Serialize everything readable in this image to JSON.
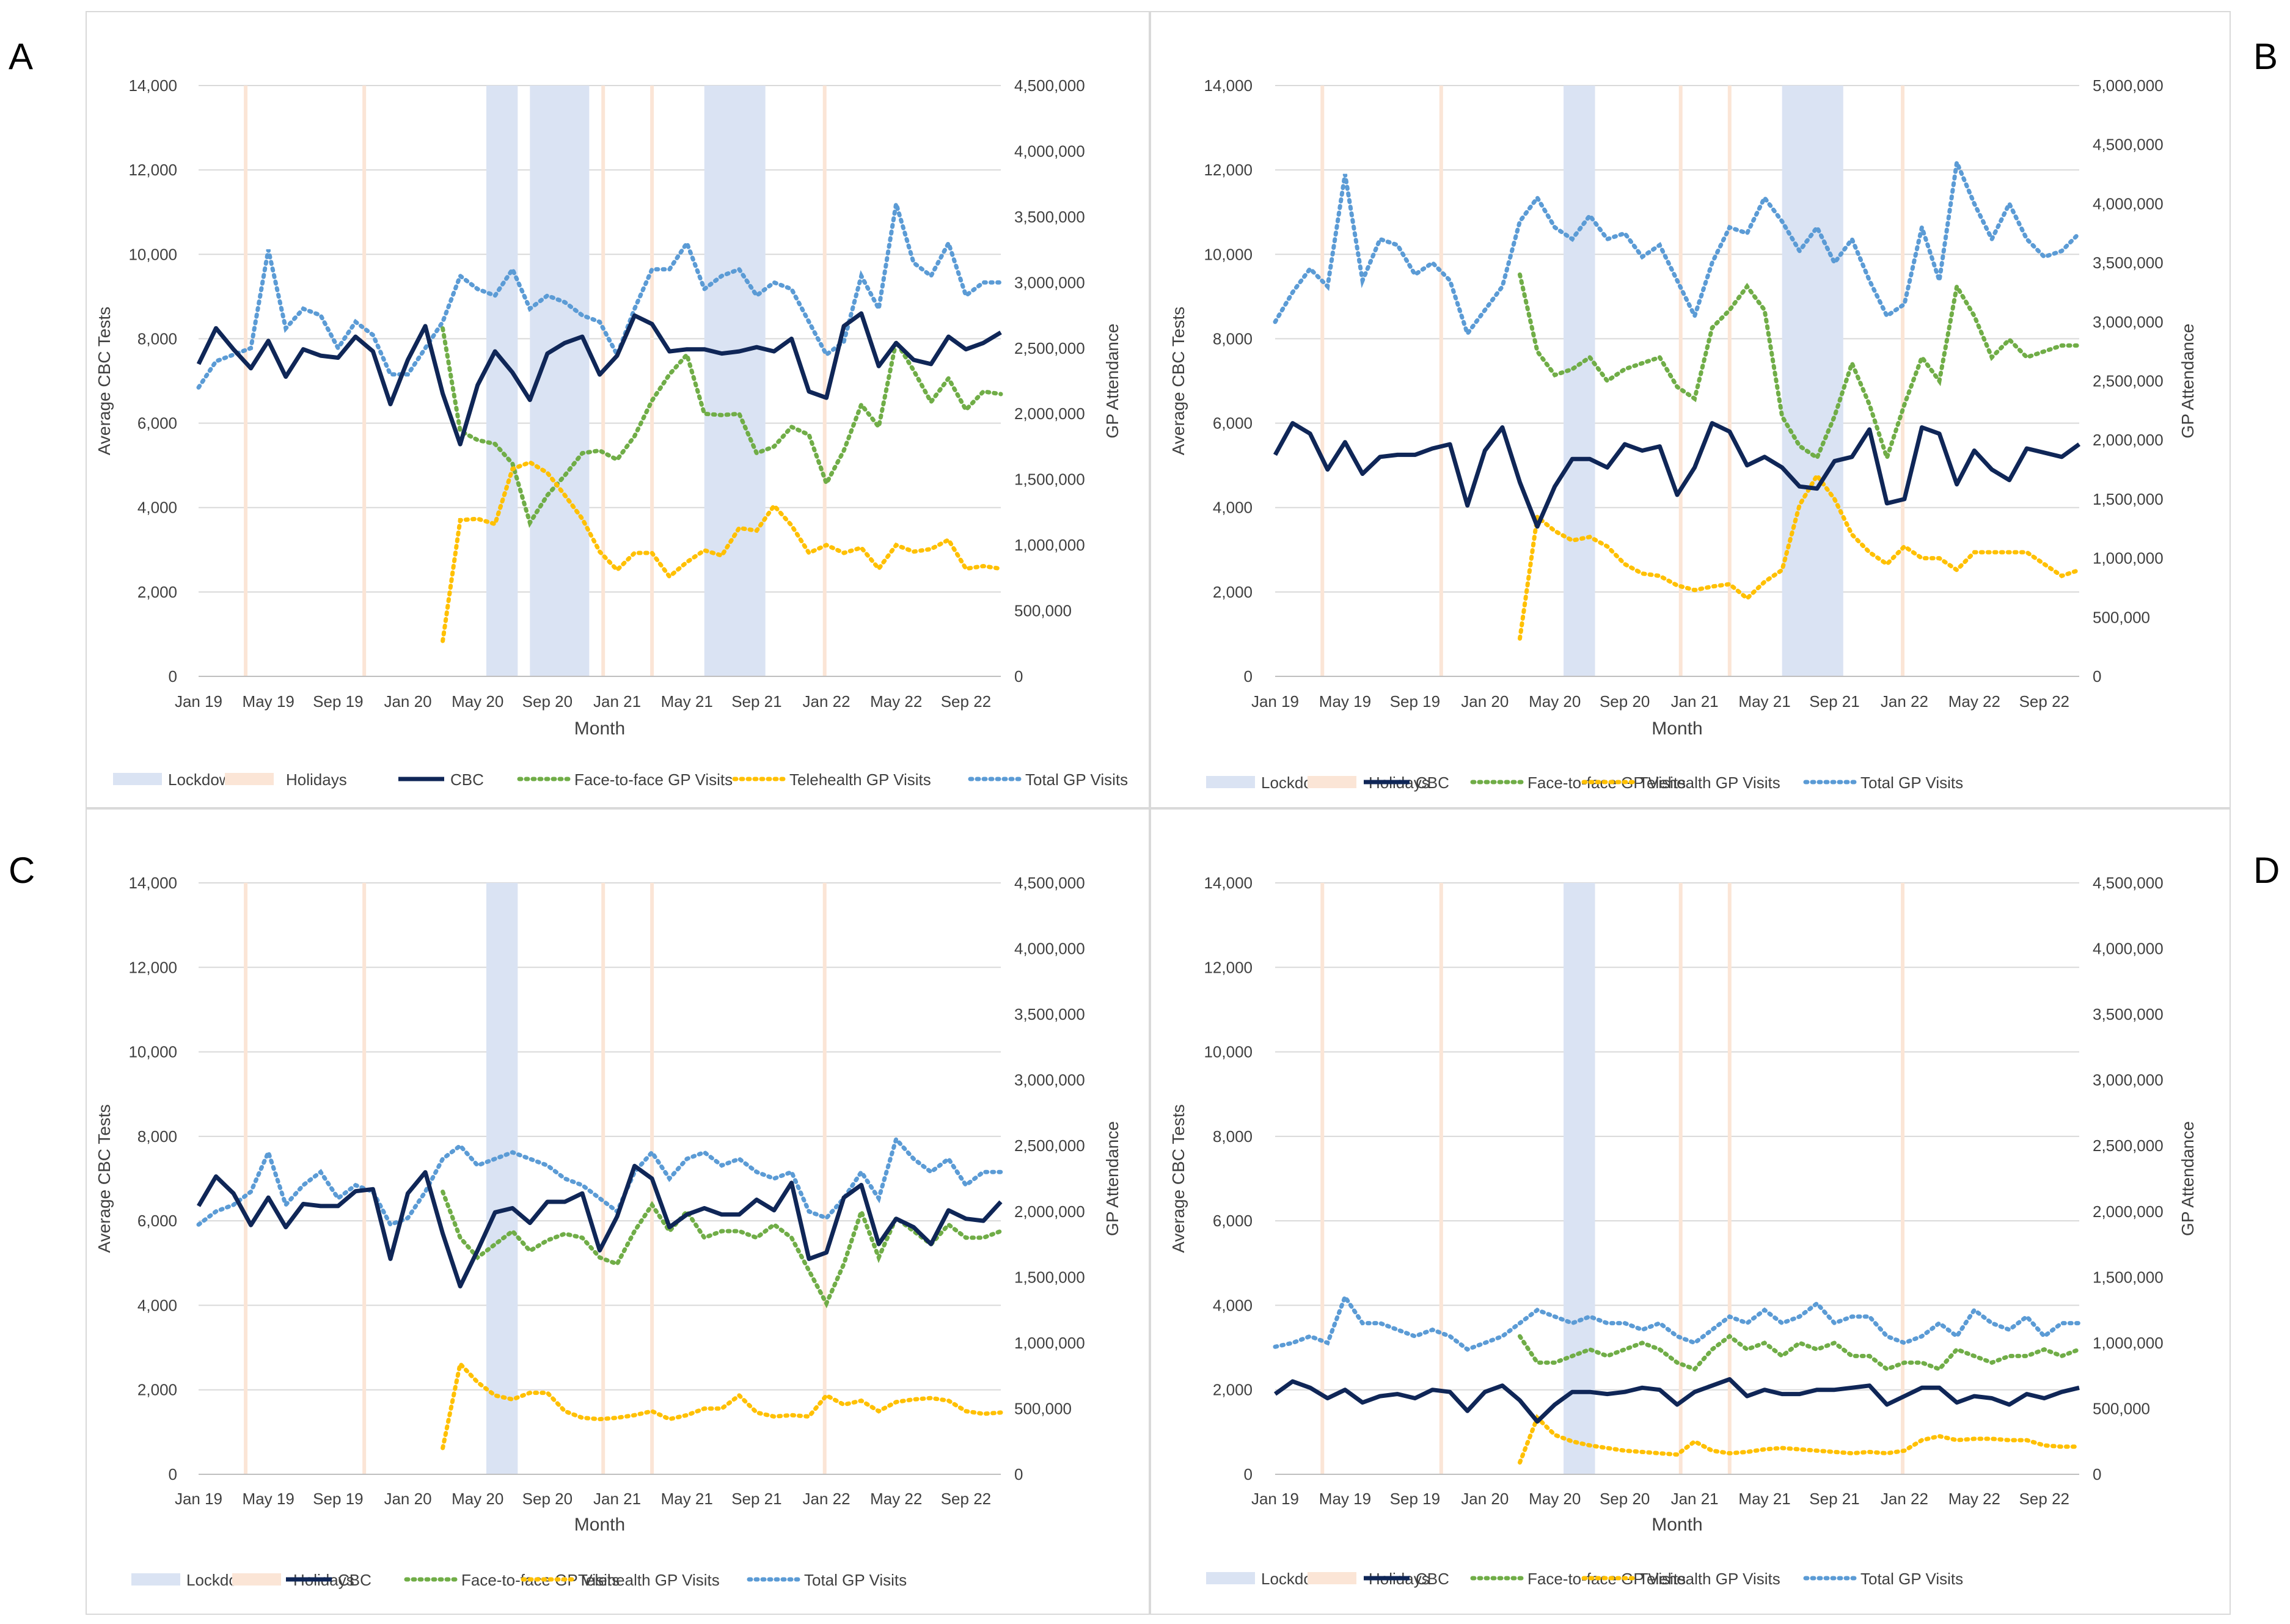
{
  "chart_data": [
    {
      "panel_letter": "A",
      "type": "line",
      "xlabel": "Month",
      "ylabel": "Average CBC Tests",
      "y2label": "GP Attendance",
      "ylim": [
        0,
        14000
      ],
      "y2lim": [
        0,
        4500000
      ],
      "yticks": [
        0,
        2000,
        4000,
        6000,
        8000,
        10000,
        12000,
        14000
      ],
      "y2ticks": [
        0,
        500000,
        1000000,
        1500000,
        2000000,
        2500000,
        3000000,
        3500000,
        4000000,
        4500000
      ],
      "lockdown_months": [
        [
          16.5,
          18.3
        ],
        [
          19.0,
          22.4
        ],
        [
          29.0,
          32.5
        ]
      ],
      "holiday_months": [
        2.7,
        9.5,
        23.2,
        26.0,
        35.9
      ],
      "cbc": [
        7400,
        8250,
        7750,
        7300,
        7950,
        7100,
        7750,
        7600,
        7550,
        8050,
        7700,
        6450,
        7500,
        8300,
        6700,
        5500,
        6900,
        7700,
        7200,
        6550,
        7650,
        7900,
        8050,
        7150,
        7600,
        8550,
        8350,
        7700,
        7750,
        7750,
        7650,
        7700,
        7800,
        7700,
        8000,
        6750,
        6600,
        8300,
        8600,
        7350,
        7900,
        7500,
        7400,
        8050,
        7750,
        7900,
        8150
      ],
      "f2f": [
        null,
        null,
        null,
        null,
        null,
        null,
        null,
        null,
        null,
        null,
        null,
        null,
        null,
        null,
        2650000,
        1870000,
        1800000,
        1770000,
        1620000,
        1170000,
        1380000,
        1530000,
        1700000,
        1720000,
        1650000,
        1830000,
        2100000,
        2300000,
        2450000,
        2000000,
        1990000,
        2000000,
        1700000,
        1750000,
        1900000,
        1840000,
        1470000,
        1720000,
        2070000,
        1900000,
        2550000,
        2330000,
        2090000,
        2270000,
        2030000,
        2170000,
        2150000
      ],
      "tele": [
        null,
        null,
        null,
        null,
        null,
        null,
        null,
        null,
        null,
        null,
        null,
        null,
        null,
        null,
        270000,
        1190000,
        1200000,
        1160000,
        1580000,
        1630000,
        1550000,
        1380000,
        1200000,
        950000,
        810000,
        940000,
        940000,
        760000,
        870000,
        960000,
        920000,
        1130000,
        1110000,
        1300000,
        1150000,
        940000,
        1000000,
        940000,
        980000,
        820000,
        1000000,
        950000,
        970000,
        1040000,
        820000,
        840000,
        820000
      ],
      "total": [
        2200000,
        2400000,
        2450000,
        2500000,
        3250000,
        2650000,
        2800000,
        2750000,
        2500000,
        2700000,
        2600000,
        2300000,
        2300000,
        2500000,
        2700000,
        3050000,
        2950000,
        2900000,
        3100000,
        2800000,
        2900000,
        2850000,
        2750000,
        2700000,
        2450000,
        2800000,
        3100000,
        3100000,
        3300000,
        2950000,
        3050000,
        3100000,
        2900000,
        3000000,
        2950000,
        2700000,
        2450000,
        2550000,
        3050000,
        2800000,
        3600000,
        3150000,
        3050000,
        3300000,
        2900000,
        3000000,
        3000000
      ]
    },
    {
      "panel_letter": "B",
      "type": "line",
      "xlabel": "Month",
      "ylabel": "Average CBC Tests",
      "y2label": "GP Attendance",
      "ylim": [
        0,
        14000
      ],
      "y2lim": [
        0,
        5000000
      ],
      "yticks": [
        0,
        2000,
        4000,
        6000,
        8000,
        10000,
        12000,
        14000
      ],
      "y2ticks": [
        0,
        500000,
        1000000,
        1500000,
        2000000,
        2500000,
        3000000,
        3500000,
        4000000,
        4500000,
        5000000
      ],
      "lockdown_months": [
        [
          16.5,
          18.3
        ],
        [
          29.0,
          32.5
        ]
      ],
      "holiday_months": [
        2.7,
        9.5,
        23.2,
        26.0,
        35.9
      ],
      "cbc": [
        5250,
        6000,
        5750,
        4900,
        5550,
        4800,
        5200,
        5250,
        5250,
        5400,
        5500,
        4050,
        5350,
        5900,
        4600,
        3550,
        4500,
        5150,
        5150,
        4950,
        5500,
        5350,
        5450,
        4300,
        4950,
        6000,
        5800,
        5000,
        5200,
        4950,
        4500,
        4450,
        5100,
        5200,
        5850,
        4100,
        4200,
        5900,
        5750,
        4550,
        5350,
        4900,
        4650,
        5400,
        5300,
        5200,
        5500
      ],
      "f2f": [
        null,
        null,
        null,
        null,
        null,
        null,
        null,
        null,
        null,
        null,
        null,
        null,
        null,
        null,
        3400000,
        2750000,
        2550000,
        2600000,
        2700000,
        2500000,
        2600000,
        2650000,
        2700000,
        2450000,
        2350000,
        2950000,
        3100000,
        3300000,
        3100000,
        2200000,
        1950000,
        1850000,
        2200000,
        2650000,
        2300000,
        1850000,
        2300000,
        2700000,
        2500000,
        3300000,
        3050000,
        2700000,
        2850000,
        2700000,
        2750000,
        2800000,
        2800000
      ],
      "tele": [
        null,
        null,
        null,
        null,
        null,
        null,
        null,
        null,
        null,
        null,
        null,
        null,
        null,
        null,
        320000,
        1350000,
        1230000,
        1150000,
        1180000,
        1100000,
        950000,
        870000,
        850000,
        770000,
        730000,
        760000,
        780000,
        660000,
        800000,
        900000,
        1450000,
        1700000,
        1500000,
        1200000,
        1050000,
        950000,
        1100000,
        1000000,
        1000000,
        900000,
        1050000,
        1050000,
        1050000,
        1050000,
        950000,
        850000,
        900000
      ],
      "total": [
        3000000,
        3250000,
        3450000,
        3300000,
        4250000,
        3350000,
        3700000,
        3650000,
        3400000,
        3500000,
        3350000,
        2900000,
        3100000,
        3300000,
        3850000,
        4050000,
        3800000,
        3700000,
        3900000,
        3700000,
        3750000,
        3550000,
        3650000,
        3350000,
        3050000,
        3500000,
        3800000,
        3750000,
        4050000,
        3850000,
        3600000,
        3800000,
        3500000,
        3700000,
        3350000,
        3050000,
        3150000,
        3800000,
        3350000,
        4350000,
        4000000,
        3700000,
        4000000,
        3700000,
        3550000,
        3600000,
        3750000
      ]
    },
    {
      "panel_letter": "C",
      "type": "line",
      "xlabel": "Month",
      "ylabel": "Average CBC Tests",
      "y2label": "GP Attendance",
      "ylim": [
        0,
        14000
      ],
      "y2lim": [
        0,
        4500000
      ],
      "yticks": [
        0,
        2000,
        4000,
        6000,
        8000,
        10000,
        12000,
        14000
      ],
      "y2ticks": [
        0,
        500000,
        1000000,
        1500000,
        2000000,
        2500000,
        3000000,
        3500000,
        4000000,
        4500000
      ],
      "lockdown_months": [
        [
          16.5,
          18.3
        ]
      ],
      "holiday_months": [
        2.7,
        9.5,
        23.2,
        26.0,
        35.9
      ],
      "cbc": [
        6350,
        7050,
        6650,
        5900,
        6550,
        5850,
        6400,
        6350,
        6350,
        6700,
        6750,
        5100,
        6650,
        7150,
        5700,
        4450,
        5300,
        6200,
        6300,
        5950,
        6450,
        6450,
        6650,
        5300,
        6100,
        7300,
        7000,
        5850,
        6150,
        6300,
        6150,
        6150,
        6500,
        6250,
        6900,
        5100,
        5250,
        6550,
        6850,
        5450,
        6050,
        5850,
        5450,
        6250,
        6050,
        6000,
        6450
      ],
      "f2f": [
        null,
        null,
        null,
        null,
        null,
        null,
        null,
        null,
        null,
        null,
        null,
        null,
        null,
        null,
        2150000,
        1800000,
        1650000,
        1750000,
        1850000,
        1700000,
        1780000,
        1830000,
        1800000,
        1650000,
        1600000,
        1850000,
        2050000,
        1850000,
        2000000,
        1800000,
        1850000,
        1850000,
        1800000,
        1900000,
        1800000,
        1550000,
        1300000,
        1600000,
        2000000,
        1650000,
        1950000,
        1850000,
        1750000,
        1900000,
        1800000,
        1800000,
        1850000
      ],
      "tele": [
        null,
        null,
        null,
        null,
        null,
        null,
        null,
        null,
        null,
        null,
        null,
        null,
        null,
        null,
        200000,
        840000,
        700000,
        600000,
        570000,
        620000,
        620000,
        480000,
        430000,
        420000,
        430000,
        450000,
        480000,
        420000,
        450000,
        500000,
        500000,
        600000,
        470000,
        440000,
        450000,
        440000,
        600000,
        530000,
        560000,
        480000,
        550000,
        570000,
        580000,
        560000,
        480000,
        460000,
        470000
      ],
      "total": [
        1900000,
        2000000,
        2050000,
        2150000,
        2450000,
        2050000,
        2200000,
        2300000,
        2100000,
        2200000,
        2150000,
        1900000,
        1950000,
        2150000,
        2400000,
        2500000,
        2350000,
        2400000,
        2450000,
        2400000,
        2350000,
        2250000,
        2200000,
        2100000,
        2000000,
        2300000,
        2450000,
        2250000,
        2400000,
        2450000,
        2350000,
        2400000,
        2300000,
        2250000,
        2300000,
        2000000,
        1950000,
        2100000,
        2300000,
        2100000,
        2550000,
        2400000,
        2300000,
        2400000,
        2200000,
        2300000,
        2300000
      ]
    },
    {
      "panel_letter": "D",
      "type": "line",
      "xlabel": "Month",
      "ylabel": "Average CBC Tests",
      "y2label": "GP Attendance",
      "ylim": [
        0,
        14000
      ],
      "y2lim": [
        0,
        4500000
      ],
      "yticks": [
        0,
        2000,
        4000,
        6000,
        8000,
        10000,
        12000,
        14000
      ],
      "y2ticks": [
        0,
        500000,
        1000000,
        1500000,
        2000000,
        2500000,
        3000000,
        3500000,
        4000000,
        4500000
      ],
      "lockdown_months": [
        [
          16.5,
          18.3
        ]
      ],
      "holiday_months": [
        2.7,
        9.5,
        23.2,
        26.0,
        35.9
      ],
      "cbc": [
        1900,
        2200,
        2050,
        1800,
        2000,
        1700,
        1850,
        1900,
        1800,
        2000,
        1950,
        1500,
        1950,
        2100,
        1750,
        1250,
        1650,
        1950,
        1950,
        1900,
        1950,
        2050,
        2000,
        1650,
        1950,
        2100,
        2250,
        1850,
        2000,
        1900,
        1900,
        2000,
        2000,
        2050,
        2100,
        1650,
        1850,
        2050,
        2050,
        1700,
        1850,
        1800,
        1650,
        1900,
        1800,
        1950,
        2050
      ],
      "f2f": [
        null,
        null,
        null,
        null,
        null,
        null,
        null,
        null,
        null,
        null,
        null,
        null,
        null,
        null,
        1050000,
        850000,
        850000,
        900000,
        950000,
        900000,
        950000,
        1000000,
        950000,
        850000,
        800000,
        950000,
        1050000,
        950000,
        1000000,
        900000,
        1000000,
        950000,
        1000000,
        900000,
        900000,
        800000,
        850000,
        850000,
        800000,
        950000,
        900000,
        850000,
        900000,
        900000,
        950000,
        900000,
        950000
      ],
      "tele": [
        null,
        null,
        null,
        null,
        null,
        null,
        null,
        null,
        null,
        null,
        null,
        null,
        null,
        null,
        90000,
        430000,
        300000,
        250000,
        220000,
        200000,
        180000,
        170000,
        160000,
        150000,
        250000,
        180000,
        160000,
        170000,
        190000,
        200000,
        190000,
        180000,
        170000,
        160000,
        170000,
        160000,
        180000,
        260000,
        290000,
        260000,
        270000,
        270000,
        260000,
        260000,
        220000,
        210000,
        210000
      ],
      "total": [
        970000,
        1000000,
        1050000,
        1000000,
        1350000,
        1150000,
        1150000,
        1100000,
        1050000,
        1100000,
        1050000,
        950000,
        1000000,
        1050000,
        1150000,
        1250000,
        1200000,
        1150000,
        1200000,
        1150000,
        1150000,
        1100000,
        1150000,
        1050000,
        1000000,
        1100000,
        1200000,
        1150000,
        1250000,
        1150000,
        1200000,
        1300000,
        1150000,
        1200000,
        1200000,
        1050000,
        1000000,
        1050000,
        1150000,
        1050000,
        1250000,
        1150000,
        1100000,
        1200000,
        1050000,
        1150000,
        1150000
      ]
    }
  ],
  "x_tick_labels": [
    "Jan 19",
    "May 19",
    "Sep 19",
    "Jan 20",
    "May 20",
    "Sep 20",
    "Jan 21",
    "May 21",
    "Sep 21",
    "Jan 22",
    "May 22",
    "Sep 22"
  ],
  "legend": [
    "Lockdown",
    "Holidays",
    "CBC",
    "Face-to-face GP Visits",
    "Telehealth GP Visits",
    "Total GP Visits"
  ],
  "colors": {
    "cbc": "#0f2657",
    "f2f": "#70ad47",
    "tele": "#ffc000",
    "total": "#5b9bd5",
    "lockdown": "#dae3f3",
    "holidays": "#fbe5d6",
    "grid": "#d9d9d9"
  }
}
